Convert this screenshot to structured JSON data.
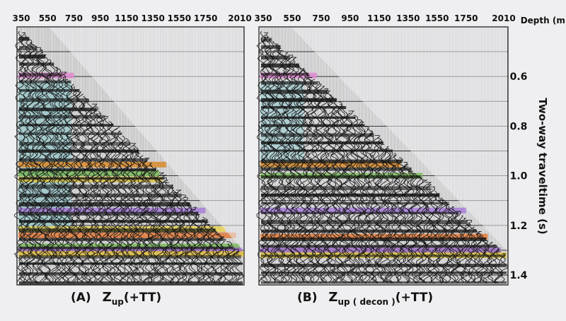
{
  "panels": [
    {
      "id": "A",
      "label": "(A)",
      "z": "Z",
      "subscript": "up",
      "suffix": "(+TT)",
      "seed": 7,
      "bands": [
        {
          "t": 0.596,
          "depth_end": 750,
          "color": "#e08ad0"
        },
        {
          "t": 0.955,
          "depth_end": 1450,
          "color": "#d88a2a"
        },
        {
          "t": 0.99,
          "depth_end": 1400,
          "color": "#7ab85a"
        },
        {
          "t": 1.015,
          "depth_end": 1420,
          "color": "#d8c040"
        },
        {
          "t": 1.14,
          "depth_end": 1750,
          "color": "#a77cd8"
        },
        {
          "t": 1.215,
          "depth_end": 1900,
          "color": "#e8d050"
        },
        {
          "t": 1.24,
          "depth_end": 1980,
          "color": "#e07a3a"
        },
        {
          "t": 1.285,
          "depth_end": 2010,
          "color": "#7ab85a"
        },
        {
          "t": 1.3,
          "depth_end": 2030,
          "color": "#a070c8"
        },
        {
          "t": 1.315,
          "depth_end": 2040,
          "color": "#e0c040"
        }
      ],
      "shading": {
        "depth_start": 350,
        "depth_end": 750,
        "t_start": 0.62,
        "t_end": 1.23,
        "color": "#9cc7c9"
      }
    },
    {
      "id": "B",
      "label": "(B)",
      "z": "Z",
      "subscript": "up ( decon )",
      "suffix": "(+TT)",
      "seed": 19,
      "bands": [
        {
          "t": 0.596,
          "depth_end": 720,
          "color": "#e08ad0"
        },
        {
          "t": 0.955,
          "depth_end": 1300,
          "color": "#d88a2a"
        },
        {
          "t": 1.0,
          "depth_end": 1450,
          "color": "#7ab85a"
        },
        {
          "t": 1.14,
          "depth_end": 1750,
          "color": "#a77cd8"
        },
        {
          "t": 1.245,
          "depth_end": 1900,
          "color": "#e07a3a"
        },
        {
          "t": 1.3,
          "depth_end": 1990,
          "color": "#a070c8"
        },
        {
          "t": 1.32,
          "depth_end": 2030,
          "color": "#d8c040"
        }
      ],
      "shading": {
        "depth_start": 350,
        "depth_end": 650,
        "t_start": 0.62,
        "t_end": 0.97,
        "color": "#a8cdd0"
      }
    }
  ],
  "depth_axis": {
    "ticks": [
      350,
      550,
      750,
      950,
      1150,
      1350,
      1550,
      1750,
      2010
    ],
    "unit_label": "Depth (m)",
    "min": 350,
    "max": 2010
  },
  "time_axis": {
    "label": "Two-way traveltime (s)",
    "ticks": [
      0.6,
      0.8,
      1.0,
      1.2,
      1.4
    ],
    "min": 0.4,
    "max": 1.44
  },
  "colors": {
    "background": "#efeff1",
    "trace": "#111111"
  }
}
